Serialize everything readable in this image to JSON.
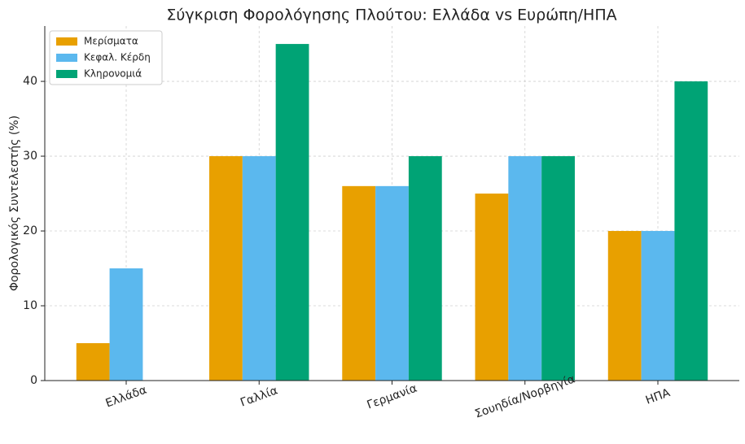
{
  "chart_data": {
    "type": "bar",
    "title": "Σύγκριση Φορολόγησης Πλούτου: Ελλάδα vs Ευρώπη/ΗΠΑ",
    "y_label": "Φορολογικός Συντελεστής (%)",
    "categories": [
      "Ελλάδα",
      "Γαλλία",
      "Γερμανία",
      "Σουηδία/Νορβηγία",
      "ΗΠΑ"
    ],
    "series": [
      {
        "name": "Μερίσματα",
        "color": "#e8a000",
        "values": [
          5,
          30,
          26,
          25,
          20
        ]
      },
      {
        "name": "Κεφαλ. Κέρδη",
        "color": "#5bb8ee",
        "values": [
          15,
          30,
          26,
          30,
          20
        ]
      },
      {
        "name": "Κληρονομιά",
        "color": "#00a375",
        "values": [
          0,
          45,
          30,
          30,
          40
        ]
      }
    ],
    "ylim": [
      0,
      47.4
    ],
    "yticks": [
      0,
      10,
      20,
      30,
      40
    ],
    "grid": true,
    "legend": "upper-left"
  }
}
